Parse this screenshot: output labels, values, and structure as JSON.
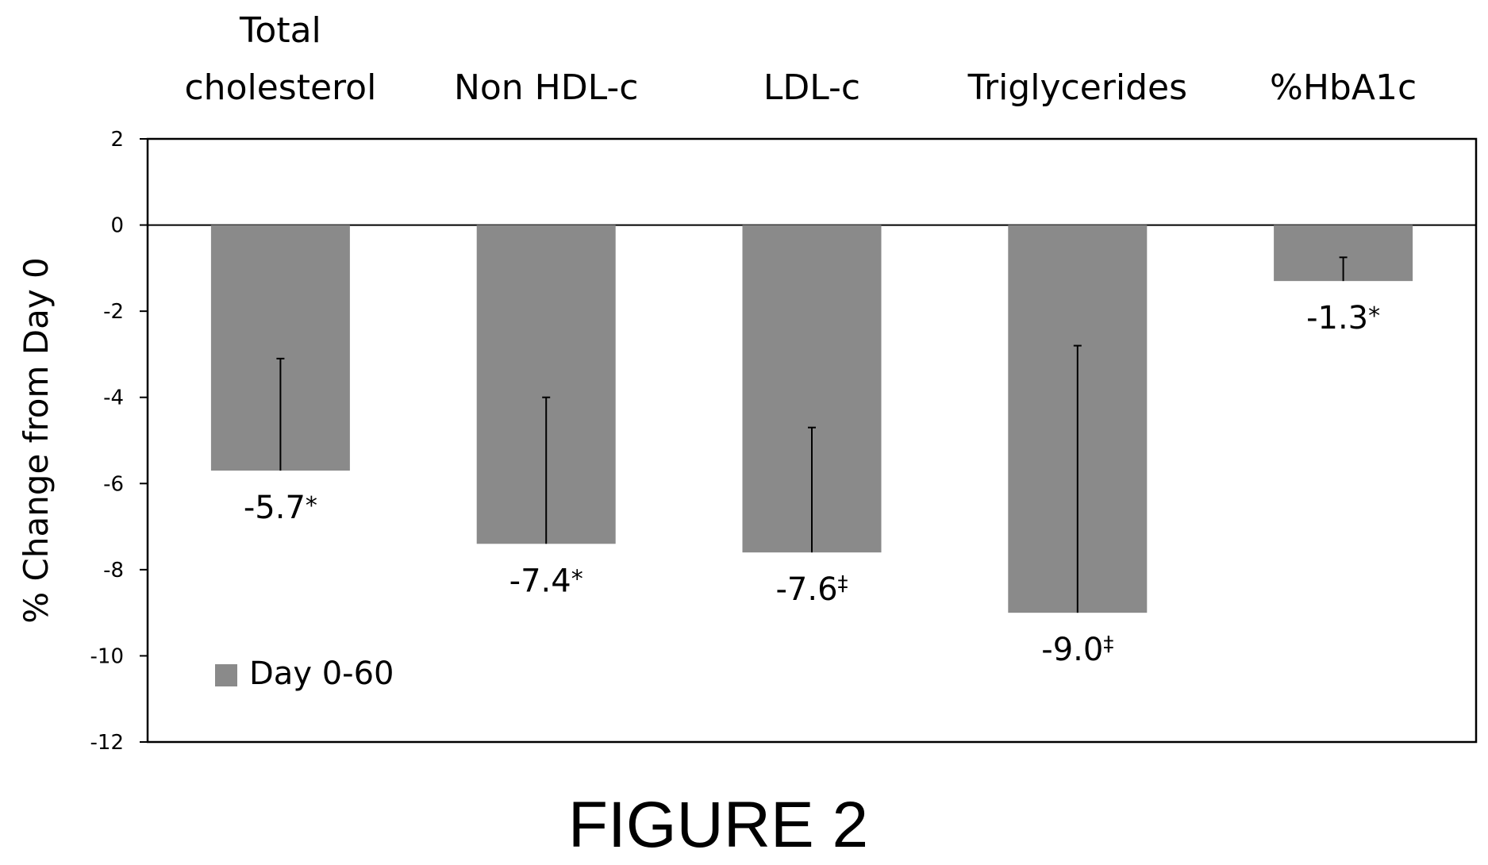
{
  "figure_caption": "FIGURE 2",
  "colors": {
    "bar": "#8a8a8a",
    "axis": "#000000",
    "text": "#000000"
  },
  "chart_data": {
    "type": "bar",
    "title": "",
    "xlabel": "",
    "ylabel": "% Change from Day 0",
    "ylim": [
      -12,
      2
    ],
    "yticks": [
      2,
      0,
      -2,
      -4,
      -6,
      -8,
      -10,
      -12
    ],
    "grid": false,
    "legend_position": "bottom-left",
    "categories": [
      "Total cholesterol",
      "Non HDL-c",
      "LDL-c",
      "Triglycerides",
      "%HbA1c"
    ],
    "series": [
      {
        "name": "Day 0-60",
        "values": [
          -5.7,
          -7.4,
          -7.6,
          -9.0,
          -1.3
        ],
        "error_upper": [
          -3.1,
          -4.0,
          -4.7,
          -2.8,
          -0.75
        ],
        "data_labels": [
          "-5.7",
          "-7.4",
          "-7.6",
          "-9.0",
          "-1.3"
        ],
        "label_markers": [
          "*",
          "*",
          "‡",
          "‡",
          "*"
        ]
      }
    ]
  }
}
